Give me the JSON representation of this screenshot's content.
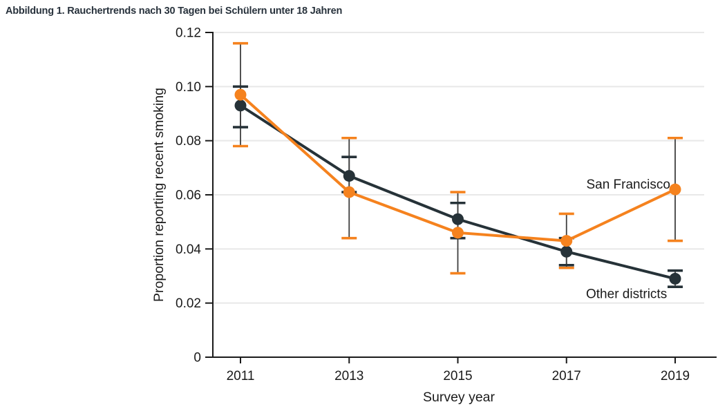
{
  "title": "Abbildung 1. Rauchertrends nach 30 Tagen bei Schülern unter 18 Jahren",
  "colors": {
    "title_text": "#28323C",
    "axis": "#1A1A1A",
    "tick_text": "#1A1A1A",
    "grid": "#E8E8E8",
    "error_stem": "#3F3F3F",
    "background": "#FFFFFF"
  },
  "chart_data": {
    "type": "line",
    "title": "Abbildung 1. Rauchertrends nach 30 Tagen bei Schülern unter 18 Jahren",
    "xlabel": "Survey year",
    "ylabel": "Proportion reporting recent smoking",
    "x": [
      2011,
      2013,
      2015,
      2017,
      2019
    ],
    "xtick_labels": [
      "2011",
      "2013",
      "2015",
      "2017",
      "2019"
    ],
    "ylim": [
      0,
      0.12
    ],
    "yticks": [
      0,
      0.02,
      0.04,
      0.06,
      0.08,
      0.1,
      0.12
    ],
    "ytick_labels": [
      "0",
      "0.02",
      "0.04",
      "0.06",
      "0.08",
      "0.10",
      "0.12"
    ],
    "grid": "horizontal",
    "error_bars": true,
    "legend_position": "inline-annotations",
    "marker": "circle",
    "series": [
      {
        "name": "Other districts",
        "color": "#263238",
        "points": [
          {
            "x": 2011,
            "y": 0.093,
            "ci": [
              0.085,
              0.1
            ]
          },
          {
            "x": 2013,
            "y": 0.067,
            "ci": [
              0.061,
              0.074
            ]
          },
          {
            "x": 2015,
            "y": 0.051,
            "ci": [
              0.044,
              0.057
            ]
          },
          {
            "x": 2017,
            "y": 0.039,
            "ci": [
              0.034,
              0.044
            ]
          },
          {
            "x": 2019,
            "y": 0.029,
            "ci": [
              0.026,
              0.032
            ]
          }
        ],
        "label_anchor": {
          "x": 2018.85,
          "y": 0.0235,
          "align": "end"
        }
      },
      {
        "name": "San Francisco",
        "color": "#F5821E",
        "points": [
          {
            "x": 2011,
            "y": 0.097,
            "ci": [
              0.078,
              0.116
            ]
          },
          {
            "x": 2013,
            "y": 0.061,
            "ci": [
              0.044,
              0.081
            ]
          },
          {
            "x": 2015,
            "y": 0.046,
            "ci": [
              0.031,
              0.061
            ]
          },
          {
            "x": 2017,
            "y": 0.043,
            "ci": [
              0.033,
              0.053
            ]
          },
          {
            "x": 2019,
            "y": 0.062,
            "ci": [
              0.043,
              0.081
            ]
          }
        ],
        "label_anchor": {
          "x": 2018.91,
          "y": 0.064,
          "align": "end"
        }
      }
    ]
  }
}
